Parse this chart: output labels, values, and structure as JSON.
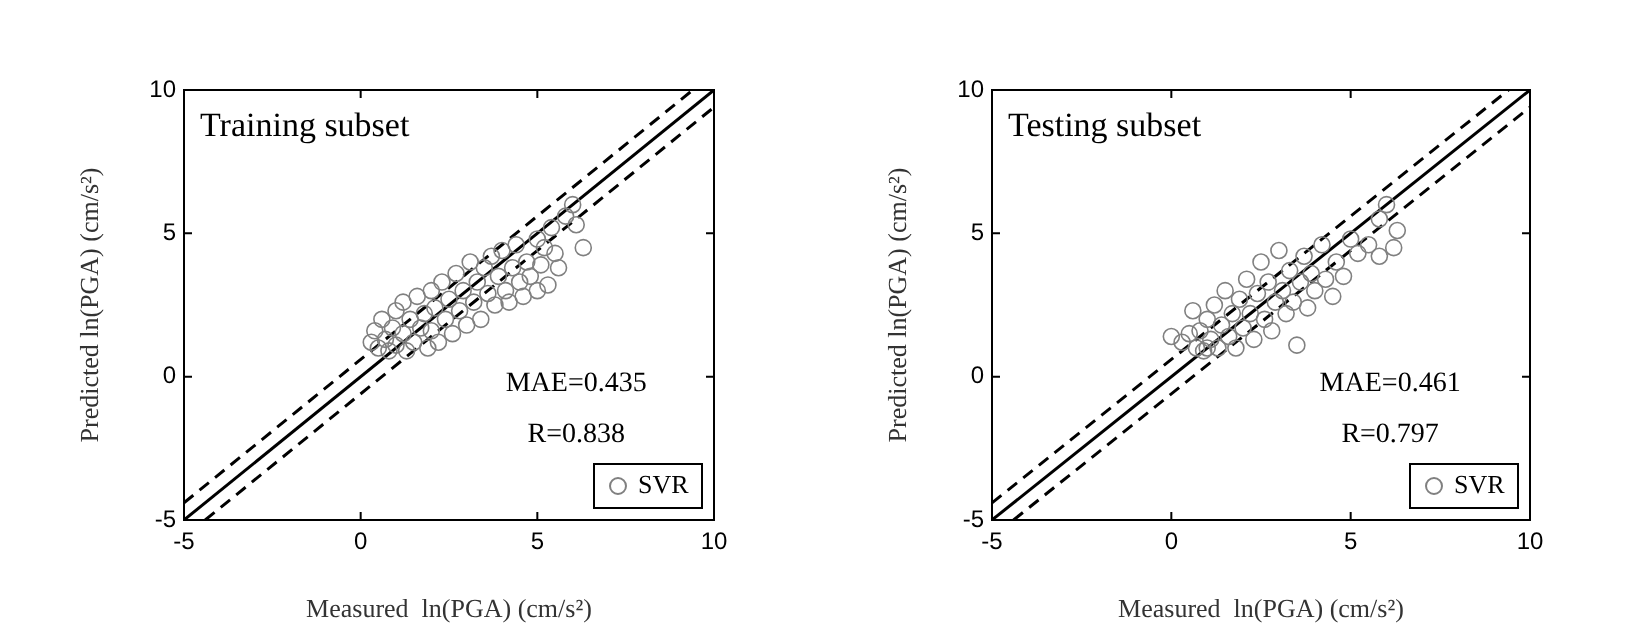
{
  "chart_data": [
    {
      "type": "scatter",
      "title": "Training subset",
      "xlabel": "Measured  ln(PGA) (cm/s²)",
      "ylabel": "Predicted ln(PGA) (cm/s²)",
      "xlim": [
        -5,
        10
      ],
      "ylim": [
        -5,
        10
      ],
      "xticks": [
        -5,
        0,
        5,
        10
      ],
      "yticks": [
        -5,
        0,
        5,
        10
      ],
      "grid": false,
      "legend": "bottom right",
      "marker": "circle",
      "annotations": [
        "MAE=0.435",
        "R=0.838"
      ],
      "series": [
        {
          "name": "SVR",
          "color": "#808080",
          "x": [
            0.3,
            0.4,
            0.5,
            0.6,
            0.7,
            0.8,
            0.9,
            1.0,
            1.0,
            1.2,
            1.2,
            1.3,
            1.4,
            1.5,
            1.6,
            1.7,
            1.8,
            1.9,
            2.0,
            2.0,
            2.1,
            2.2,
            2.3,
            2.4,
            2.5,
            2.6,
            2.7,
            2.8,
            2.9,
            3.0,
            3.1,
            3.2,
            3.3,
            3.4,
            3.5,
            3.6,
            3.7,
            3.8,
            3.9,
            4.0,
            4.1,
            4.2,
            4.3,
            4.4,
            4.5,
            4.6,
            4.7,
            4.8,
            5.0,
            5.1,
            5.2,
            5.3,
            5.4,
            5.5,
            5.6,
            5.8,
            6.0,
            6.1,
            6.3,
            5.0
          ],
          "values": [
            1.2,
            1.6,
            1.0,
            2.0,
            1.3,
            0.9,
            1.7,
            2.3,
            1.1,
            1.5,
            2.6,
            0.9,
            2.0,
            1.2,
            2.8,
            1.7,
            2.2,
            1.0,
            3.0,
            1.6,
            2.4,
            1.2,
            3.3,
            2.0,
            2.7,
            1.5,
            3.6,
            2.3,
            3.0,
            1.8,
            4.0,
            2.6,
            3.3,
            2.0,
            3.8,
            2.9,
            4.2,
            2.5,
            3.5,
            4.4,
            3.0,
            2.6,
            3.8,
            4.6,
            3.3,
            2.8,
            4.0,
            3.5,
            4.8,
            3.9,
            4.5,
            3.2,
            5.2,
            4.3,
            3.8,
            5.6,
            6.0,
            5.3,
            4.5,
            3.0
          ]
        },
        {
          "type": "line",
          "color": "#000000",
          "line_style": "solid",
          "marker": "none",
          "x": [
            -5,
            10
          ],
          "values": [
            -5,
            10
          ]
        },
        {
          "type": "line",
          "color": "#000000",
          "line_style": "dashed",
          "marker": "none",
          "x": [
            -5,
            9.4
          ],
          "values": [
            -4.4,
            10
          ]
        },
        {
          "type": "line",
          "color": "#000000",
          "line_style": "dashed",
          "marker": "none",
          "x": [
            -4.4,
            10
          ],
          "values": [
            -5,
            9.4
          ]
        }
      ]
    },
    {
      "type": "scatter",
      "title": "Testing subset",
      "xlabel": "Measured  ln(PGA) (cm/s²)",
      "ylabel": "Predicted ln(PGA) (cm/s²)",
      "xlim": [
        -5,
        10
      ],
      "ylim": [
        -5,
        10
      ],
      "xticks": [
        -5,
        0,
        5,
        10
      ],
      "yticks": [
        -5,
        0,
        5,
        10
      ],
      "grid": false,
      "legend": "bottom right",
      "marker": "circle",
      "annotations": [
        "MAE=0.461",
        "R=0.797"
      ],
      "series": [
        {
          "name": "SVR",
          "color": "#808080",
          "x": [
            0.0,
            0.3,
            0.6,
            0.7,
            0.8,
            0.9,
            1.0,
            1.1,
            1.2,
            1.3,
            1.4,
            1.5,
            1.6,
            1.7,
            1.8,
            1.9,
            2.0,
            2.1,
            2.2,
            2.3,
            2.4,
            2.5,
            2.6,
            2.7,
            2.8,
            2.9,
            3.0,
            3.1,
            3.2,
            3.3,
            3.4,
            3.5,
            3.6,
            3.7,
            3.8,
            3.9,
            4.0,
            4.2,
            4.3,
            4.5,
            4.6,
            4.8,
            5.0,
            5.2,
            5.5,
            5.8,
            5.8,
            6.0,
            6.2,
            6.3,
            0.5,
            1.0
          ],
          "values": [
            1.4,
            1.2,
            2.3,
            1.0,
            1.6,
            0.9,
            2.0,
            1.3,
            2.5,
            1.0,
            1.8,
            3.0,
            1.4,
            2.2,
            1.0,
            2.7,
            1.7,
            3.4,
            2.2,
            1.3,
            2.9,
            4.0,
            2.0,
            3.3,
            1.6,
            2.6,
            4.4,
            3.0,
            2.2,
            3.7,
            2.6,
            1.1,
            3.3,
            4.2,
            2.4,
            3.6,
            3.0,
            4.6,
            3.4,
            2.8,
            4.0,
            3.5,
            4.8,
            4.3,
            4.6,
            4.2,
            5.5,
            6.0,
            4.5,
            5.1,
            1.5,
            1.0
          ]
        },
        {
          "type": "line",
          "color": "#000000",
          "line_style": "solid",
          "marker": "none",
          "x": [
            -5,
            10
          ],
          "values": [
            -5,
            10
          ]
        },
        {
          "type": "line",
          "color": "#000000",
          "line_style": "dashed",
          "marker": "none",
          "x": [
            -5,
            9.4
          ],
          "values": [
            -4.4,
            10
          ]
        },
        {
          "type": "line",
          "color": "#000000",
          "line_style": "dashed",
          "marker": "none",
          "x": [
            -4.4,
            10
          ],
          "values": [
            -5,
            9.4
          ]
        }
      ]
    }
  ]
}
